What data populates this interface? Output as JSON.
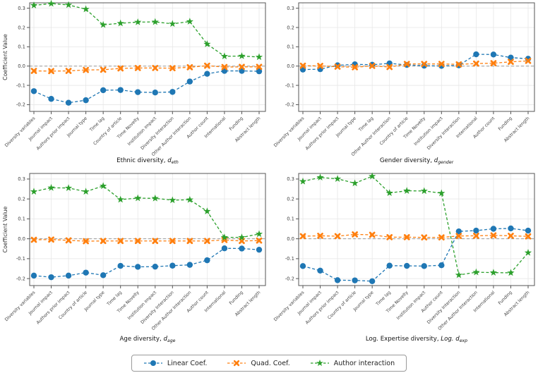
{
  "ylabel": "Coefficient Value",
  "ytick_labels": [
    "0.3",
    "0.2",
    "0.1",
    "0.0",
    "-0.1",
    "-0.2"
  ],
  "yticks": [
    0.3,
    0.2,
    0.1,
    0.0,
    -0.1,
    -0.2
  ],
  "ylim": [
    -0.235,
    0.328
  ],
  "colors": {
    "linear": "#1f77b4",
    "quad": "#ff7f0e",
    "interaction": "#2ca02c",
    "zero_line": "#999999",
    "grid": "#e6e6e6",
    "spine": "#555555",
    "tick_text": "#444444",
    "title_text": "#111111"
  },
  "legend": {
    "items": [
      {
        "key": "linear",
        "label": "Linear Coef.",
        "marker": "circle"
      },
      {
        "key": "quad",
        "label": "Quad. Coef.",
        "marker": "x"
      },
      {
        "key": "interaction",
        "label": "Author interaction",
        "marker": "star"
      }
    ]
  },
  "chart_data": [
    {
      "type": "line",
      "title": {
        "plain": "Ethnic diversity, ",
        "math": "d",
        "sub": "eth"
      },
      "show_ylabel": true,
      "categories": [
        "Diversity variables",
        "Journal impact",
        "Authors prior impact",
        "Journal type",
        "Time lag",
        "Country of article",
        "Time Novelty",
        "Institution impact",
        "Diversity Interaction",
        "Other Author Interaction",
        "Author count",
        "International",
        "Funding",
        "Abstract length"
      ],
      "series": [
        {
          "name": "Linear Coef.",
          "key": "linear",
          "values": [
            -0.13,
            -0.17,
            -0.19,
            -0.177,
            -0.125,
            -0.124,
            -0.135,
            -0.137,
            -0.134,
            -0.08,
            -0.04,
            -0.025,
            -0.025,
            -0.027
          ]
        },
        {
          "name": "Quad. Coef.",
          "key": "quad",
          "values": [
            -0.025,
            -0.026,
            -0.025,
            -0.02,
            -0.019,
            -0.012,
            -0.01,
            -0.01,
            -0.011,
            -0.006,
            0.002,
            -0.005,
            -0.004,
            -0.004
          ]
        },
        {
          "name": "Author interaction",
          "key": "interaction",
          "values": [
            0.315,
            0.324,
            0.317,
            0.295,
            0.214,
            0.222,
            0.228,
            0.229,
            0.219,
            0.231,
            0.114,
            0.051,
            0.052,
            0.047
          ]
        }
      ]
    },
    {
      "type": "line",
      "title": {
        "plain": "Gender diversity, ",
        "math": "d",
        "sub": "gender"
      },
      "show_ylabel": false,
      "categories": [
        "Diversity variables",
        "Journal impact",
        "Authors prior impact",
        "Journal type",
        "Time lag",
        "Other Author Interaction",
        "Country of article",
        "Time Novelty",
        "Institution impact",
        "Diversity Interaction",
        "International",
        "Author count",
        "Funding",
        "Abstract length"
      ],
      "series": [
        {
          "name": "Linear Coef.",
          "key": "linear",
          "values": [
            -0.018,
            -0.016,
            0.004,
            0.009,
            0.007,
            0.014,
            0.006,
            0.002,
            0.001,
            0.004,
            0.061,
            0.06,
            0.044,
            0.038
          ]
        },
        {
          "name": "Quad. Coef.",
          "key": "quad",
          "values": [
            0.002,
            0.001,
            -0.003,
            -0.006,
            0.001,
            -0.005,
            0.011,
            0.011,
            0.011,
            0.009,
            0.013,
            0.015,
            0.022,
            0.027
          ]
        }
      ]
    },
    {
      "type": "line",
      "title": {
        "plain": "Age diversity, ",
        "math": "d",
        "sub": "age"
      },
      "show_ylabel": true,
      "categories": [
        "Diversity variables",
        "Journal impact",
        "Authors prior impact",
        "Country of article",
        "Journal type",
        "Time lag",
        "Time Novelty",
        "Institution impact",
        "Diversity Interaction",
        "Other Author Interaction",
        "Author count",
        "International",
        "Funding",
        "Abstract length"
      ],
      "series": [
        {
          "name": "Linear Coef.",
          "key": "linear",
          "values": [
            -0.185,
            -0.193,
            -0.185,
            -0.17,
            -0.183,
            -0.136,
            -0.141,
            -0.14,
            -0.135,
            -0.131,
            -0.108,
            -0.048,
            -0.049,
            -0.055
          ]
        },
        {
          "name": "Quad. Coef.",
          "key": "quad",
          "values": [
            -0.005,
            -0.004,
            -0.008,
            -0.012,
            -0.011,
            -0.011,
            -0.011,
            -0.011,
            -0.011,
            -0.011,
            -0.011,
            -0.006,
            -0.011,
            -0.009
          ]
        },
        {
          "name": "Author interaction",
          "key": "interaction",
          "values": [
            0.237,
            0.256,
            0.255,
            0.237,
            0.265,
            0.197,
            0.204,
            0.203,
            0.194,
            0.196,
            0.138,
            0.007,
            0.007,
            0.024
          ]
        }
      ]
    },
    {
      "type": "line",
      "title": {
        "plain": "Log. Expertise diversity, ",
        "math": "Log. d",
        "sub": "exp"
      },
      "show_ylabel": false,
      "categories": [
        "Diversity variables",
        "Journal impact",
        "Authors prior impact",
        "Country of article",
        "Journal type",
        "Time lag",
        "Time Novelty",
        "Institution impact",
        "Author count",
        "Diversity Interaction",
        "Other Author Interaction",
        "International",
        "Funding",
        "Abstract length"
      ],
      "series": [
        {
          "name": "Linear Coef.",
          "key": "linear",
          "values": [
            -0.137,
            -0.16,
            -0.208,
            -0.209,
            -0.213,
            -0.135,
            -0.136,
            -0.137,
            -0.133,
            0.037,
            0.041,
            0.05,
            0.052,
            0.041
          ]
        },
        {
          "name": "Quad. Coef.",
          "key": "quad",
          "values": [
            0.013,
            0.015,
            0.013,
            0.022,
            0.02,
            0.008,
            0.008,
            0.007,
            0.007,
            0.014,
            0.015,
            0.017,
            0.015,
            0.012
          ]
        },
        {
          "name": "Author interaction",
          "key": "interaction",
          "values": [
            0.288,
            0.308,
            0.301,
            0.279,
            0.314,
            0.23,
            0.241,
            0.24,
            0.229,
            -0.182,
            -0.168,
            -0.17,
            -0.171,
            -0.07
          ]
        }
      ]
    }
  ]
}
